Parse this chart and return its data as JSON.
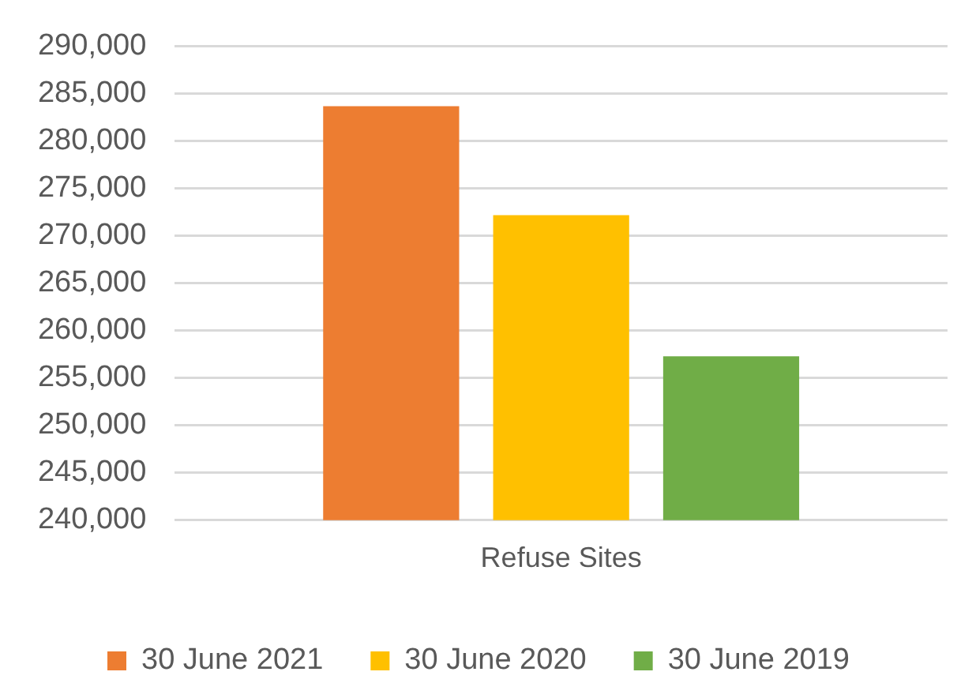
{
  "chart_data": {
    "type": "bar",
    "categories": [
      "Refuse Sites"
    ],
    "series": [
      {
        "name": "30 June 2021",
        "color": "#ed7d31",
        "values": [
          283700
        ]
      },
      {
        "name": "30 June 2020",
        "color": "#ffc000",
        "values": [
          272200
        ]
      },
      {
        "name": "30 June 2019",
        "color": "#70ad47",
        "values": [
          257300
        ]
      }
    ],
    "ylim": [
      240000,
      290000
    ],
    "yticks": [
      {
        "value": 240000,
        "label": "240,000"
      },
      {
        "value": 245000,
        "label": "245,000"
      },
      {
        "value": 250000,
        "label": "250,000"
      },
      {
        "value": 255000,
        "label": "255,000"
      },
      {
        "value": 260000,
        "label": "260,000"
      },
      {
        "value": 265000,
        "label": "265,000"
      },
      {
        "value": 270000,
        "label": "270,000"
      },
      {
        "value": 275000,
        "label": "275,000"
      },
      {
        "value": 280000,
        "label": "280,000"
      },
      {
        "value": 285000,
        "label": "285,000"
      },
      {
        "value": 290000,
        "label": "290,000"
      }
    ],
    "grid": "y",
    "legend": "bottom"
  }
}
